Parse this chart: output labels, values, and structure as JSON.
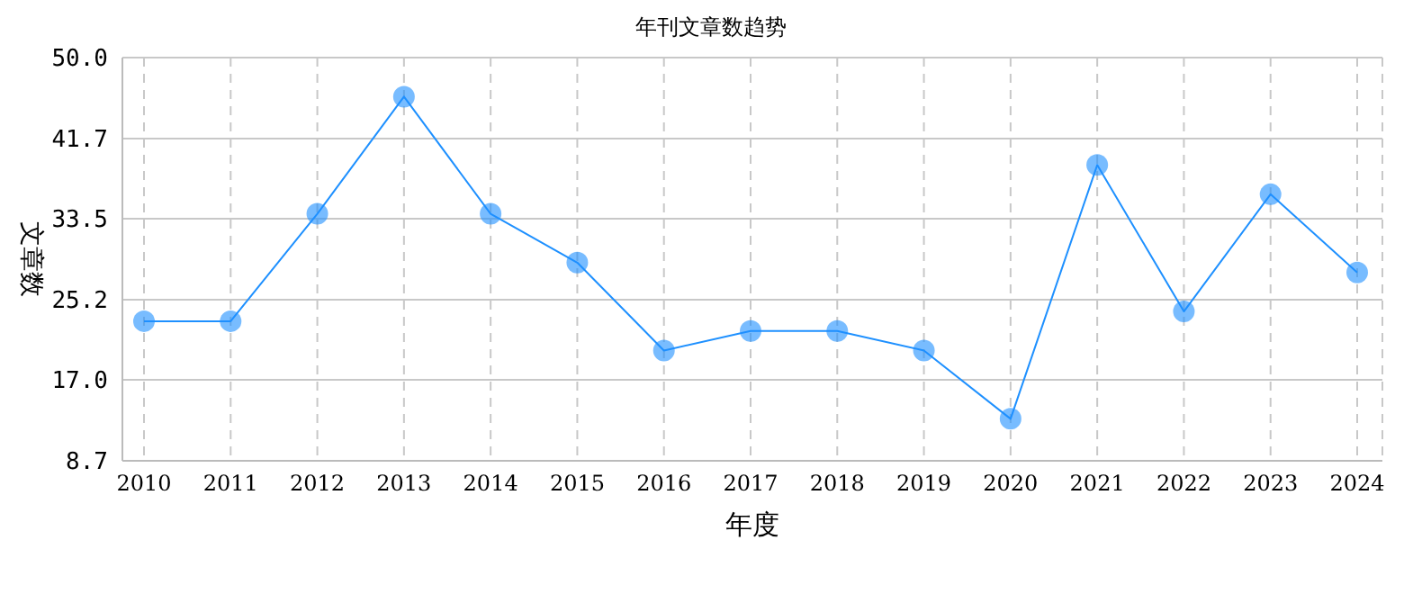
{
  "chart_data": {
    "type": "line",
    "title": "年刊文章数趋势",
    "xlabel": "年度",
    "ylabel": "文章数",
    "categories": [
      "2010",
      "2011",
      "2012",
      "2013",
      "2014",
      "2015",
      "2016",
      "2017",
      "2018",
      "2019",
      "2020",
      "2021",
      "2022",
      "2023",
      "2024"
    ],
    "series": [
      {
        "color": "#1e90ff",
        "values": [
          23,
          23,
          34,
          46,
          34,
          29,
          20,
          22,
          22,
          20,
          13,
          39,
          24,
          36,
          28
        ]
      }
    ],
    "ylim": [
      8.7,
      50
    ],
    "yticks": [
      {
        "value": 8.7,
        "label": "8.7"
      },
      {
        "value": 17,
        "label": "17.0"
      },
      {
        "value": 25.2,
        "label": "25.2"
      },
      {
        "value": 33.5,
        "label": "33.5"
      },
      {
        "value": 41.7,
        "label": "41.7"
      },
      {
        "value": 50,
        "label": "50.0"
      }
    ],
    "grid": true,
    "marker": "circle",
    "line_style": "solid"
  }
}
